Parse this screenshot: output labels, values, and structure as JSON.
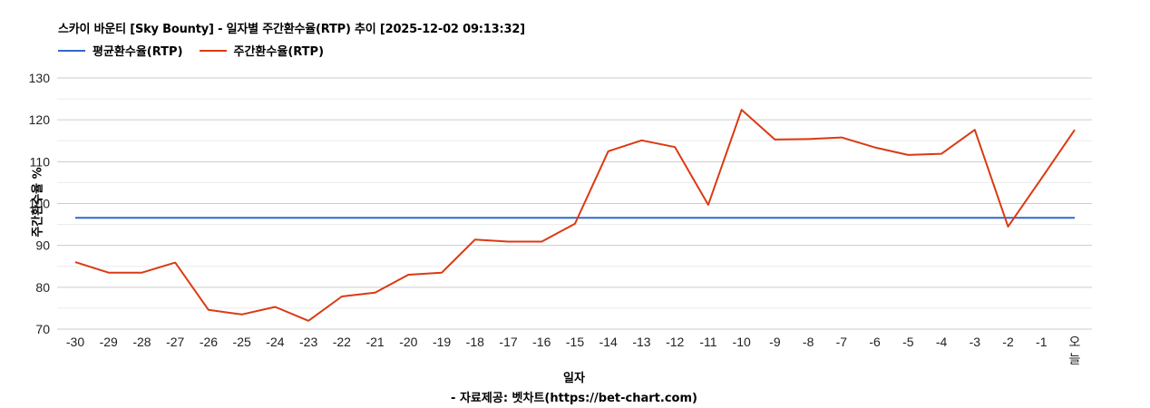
{
  "chart": {
    "title": "스카이 바운티 [Sky Bounty] - 일자별 주간환수율(RTP) 추이 [2025-12-02 09:13:32]",
    "y_axis_title": "주간환수율 %",
    "x_axis_title": "일자",
    "source": "- 자료제공: 벳차트(https://bet-chart.com)",
    "legend": [
      {
        "label": "평균환수율(RTP)",
        "color": "#3366cc"
      },
      {
        "label": "주간환수율(RTP)",
        "color": "#dc3912"
      }
    ]
  },
  "chart_data": {
    "type": "line",
    "title": "스카이 바운티 [Sky Bounty] - 일자별 주간환수율(RTP) 추이 [2025-12-02 09:13:32]",
    "xlabel": "일자",
    "ylabel": "주간환수율 %",
    "ylim": [
      70,
      130
    ],
    "yticks": [
      70,
      80,
      90,
      100,
      110,
      120,
      130
    ],
    "grid": true,
    "legend_position": "top",
    "categories": [
      "-30",
      "-29",
      "-28",
      "-27",
      "-26",
      "-25",
      "-24",
      "-23",
      "-22",
      "-21",
      "-20",
      "-19",
      "-18",
      "-17",
      "-16",
      "-15",
      "-14",
      "-13",
      "-12",
      "-11",
      "-10",
      "-9",
      "-8",
      "-7",
      "-6",
      "-5",
      "-4",
      "-3",
      "-2",
      "-1",
      "오늘"
    ],
    "series": [
      {
        "name": "평균환수율(RTP)",
        "color": "#3366cc",
        "values": [
          96.6,
          96.6,
          96.6,
          96.6,
          96.6,
          96.6,
          96.6,
          96.6,
          96.6,
          96.6,
          96.6,
          96.6,
          96.6,
          96.6,
          96.6,
          96.6,
          96.6,
          96.6,
          96.6,
          96.6,
          96.6,
          96.6,
          96.6,
          96.6,
          96.6,
          96.6,
          96.6,
          96.6,
          96.6,
          96.6,
          96.6
        ]
      },
      {
        "name": "주간환수율(RTP)",
        "color": "#dc3912",
        "values": [
          86.0,
          83.5,
          83.5,
          85.9,
          74.6,
          73.5,
          75.3,
          72.0,
          77.8,
          78.7,
          83.0,
          83.5,
          91.4,
          90.9,
          90.9,
          95.2,
          112.5,
          115.1,
          113.5,
          99.7,
          122.4,
          115.3,
          115.4,
          115.8,
          113.4,
          111.6,
          111.9,
          117.6,
          94.5,
          106.0,
          117.6
        ]
      }
    ],
    "footer": "- 자료제공: 벳차트(https://bet-chart.com)"
  }
}
